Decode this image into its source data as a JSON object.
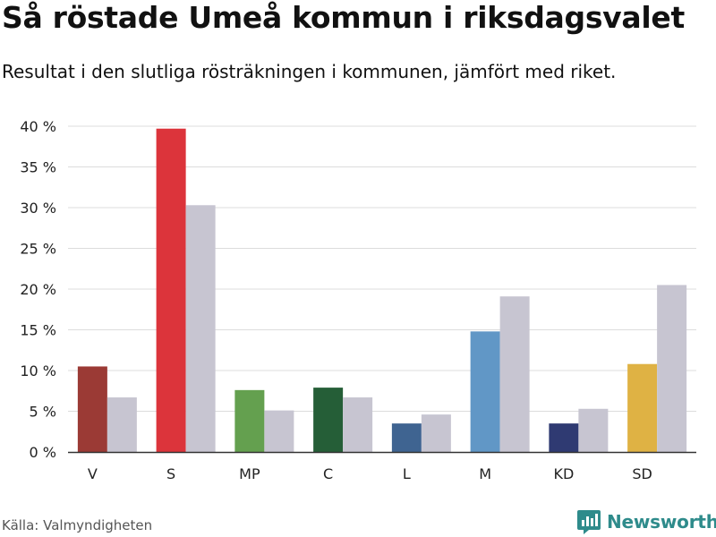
{
  "title": "Så röstade Umeå kommun i riksdagsvalet",
  "subtitle": "Resultat i den slutliga rösträkningen i kommunen, jämfört med riket.",
  "source": "Källa: Valmyndigheten",
  "brand": {
    "name": "Newsworthy",
    "icon": "bar-chart-icon",
    "color": "#2e8b8b"
  },
  "chart_data": {
    "type": "bar",
    "categories": [
      "V",
      "S",
      "MP",
      "C",
      "L",
      "M",
      "KD",
      "SD"
    ],
    "ylim": [
      0,
      40
    ],
    "yticks": [
      0,
      5,
      10,
      15,
      20,
      25,
      30,
      35,
      40
    ],
    "ytick_labels": [
      "0 %",
      "5 %",
      "10 %",
      "15 %",
      "20 %",
      "25 %",
      "30 %",
      "35 %",
      "40 %"
    ],
    "grid": true,
    "series": [
      {
        "values": [
          10.5,
          39.7,
          7.6,
          7.9,
          3.5,
          14.8,
          3.5,
          10.8
        ],
        "colors": [
          "#9b3a35",
          "#dc343b",
          "#64a04f",
          "#255e37",
          "#3f6491",
          "#6197c6",
          "#2f3a72",
          "#dfb244"
        ]
      },
      {
        "values": [
          6.7,
          30.3,
          5.1,
          6.7,
          4.6,
          19.1,
          5.3,
          20.5
        ],
        "colors": [
          "#c7c5d1",
          "#c7c5d1",
          "#c7c5d1",
          "#c7c5d1",
          "#c7c5d1",
          "#c7c5d1",
          "#c7c5d1",
          "#c7c5d1"
        ]
      }
    ]
  }
}
